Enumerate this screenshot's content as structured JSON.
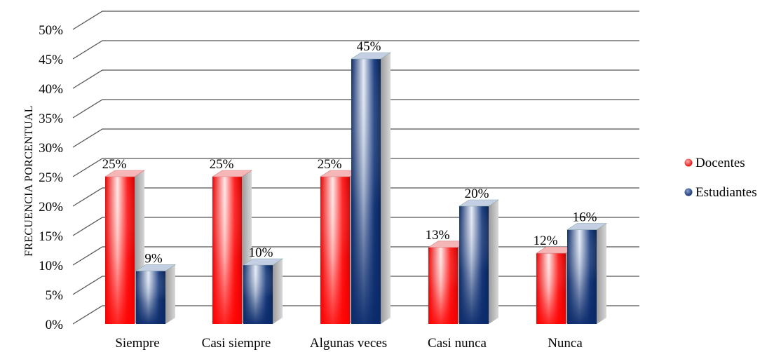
{
  "chart_data": {
    "type": "bar",
    "style": "3d-clustered-column",
    "ylabel": "FRECUENCIA PORCENTUAL",
    "xlabel": "",
    "categories": [
      "Siempre",
      "Casi siempre",
      "Algunas veces",
      "Casi nunca",
      "Nunca"
    ],
    "series": [
      {
        "name": "Docentes",
        "color": "#ff0000",
        "values": [
          25,
          25,
          25,
          13,
          12
        ],
        "labels": [
          "25%",
          "25%",
          "25%",
          "13%",
          "12%"
        ]
      },
      {
        "name": "Estudiantes",
        "color": "#0a2a6b",
        "values": [
          9,
          10,
          45,
          20,
          16
        ],
        "labels": [
          "9%",
          "10%",
          "45%",
          "20%",
          "16%"
        ]
      }
    ],
    "ylim": [
      0,
      50
    ],
    "ytick_step": 5,
    "yticks": [
      "0%",
      "5%",
      "10%",
      "15%",
      "20%",
      "25%",
      "30%",
      "35%",
      "40%",
      "45%",
      "50%"
    ],
    "grid": true,
    "legend_position": "right"
  }
}
